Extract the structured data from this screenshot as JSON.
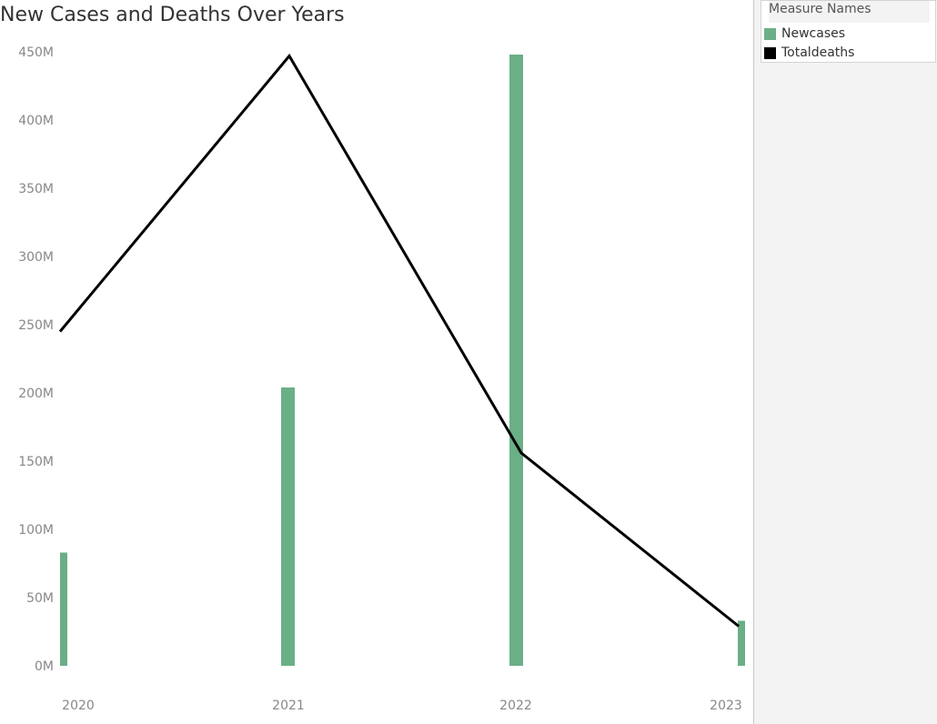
{
  "chart_data": {
    "type": "bar",
    "title": "New Cases and Deaths Over Years",
    "categories": [
      "2020",
      "2021",
      "2022",
      "2023"
    ],
    "series": [
      {
        "name": "Newcases",
        "kind": "bar",
        "color": "#6aaf86",
        "values": [
          83000000,
          204000000,
          448000000,
          33000000
        ]
      },
      {
        "name": "Totaldeaths",
        "kind": "line",
        "color": "#000000",
        "values": [
          245000000,
          447000000,
          156000000,
          29000000
        ]
      }
    ],
    "ylim": [
      0,
      450000000
    ],
    "yticks": [
      "0M",
      "50M",
      "100M",
      "150M",
      "200M",
      "250M",
      "300M",
      "350M",
      "400M",
      "450M"
    ],
    "xlabel": "",
    "ylabel": "",
    "grid": false,
    "legend": {
      "title": "Measure Names",
      "placement": "right",
      "entries": [
        {
          "label": "Newcases",
          "color": "#6aaf86"
        },
        {
          "label": "Totaldeaths",
          "color": "#000000"
        }
      ]
    }
  }
}
